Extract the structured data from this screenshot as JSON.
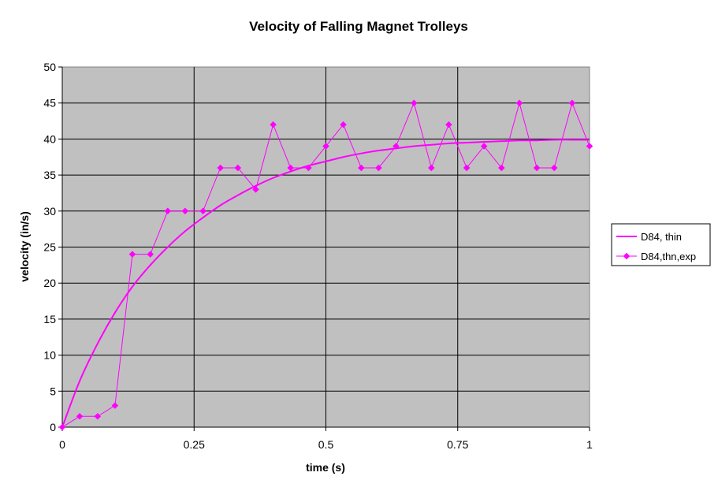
{
  "chart_data": {
    "type": "line",
    "title": "Velocity of Falling Magnet Trolleys",
    "xlabel": "time (s)",
    "ylabel": "velocity (in/s)",
    "xlim": [
      0,
      1
    ],
    "ylim": [
      0,
      50
    ],
    "x_ticks": [
      "0",
      "0.25",
      "0.5",
      "0.75",
      "1"
    ],
    "y_ticks": [
      "0",
      "5",
      "10",
      "15",
      "20",
      "25",
      "30",
      "35",
      "40",
      "45",
      "50"
    ],
    "grid": true,
    "legend_position": "right",
    "plot_background": "#c0c0c0",
    "series": [
      {
        "name": "D84, thin",
        "style": "smooth-line",
        "color": "#ff00ff",
        "x": [
          0,
          0.033,
          0.067,
          0.1,
          0.133,
          0.167,
          0.2,
          0.233,
          0.267,
          0.3,
          0.333,
          0.367,
          0.4,
          0.433,
          0.467,
          0.5,
          0.533,
          0.567,
          0.6,
          0.633,
          0.667,
          0.7,
          0.733,
          0.767,
          0.8,
          0.833,
          0.867,
          0.9,
          0.933,
          0.967,
          1.0
        ],
        "y": [
          0,
          6.4,
          11.6,
          15.9,
          19.5,
          22.5,
          25.0,
          27.2,
          29.1,
          30.8,
          32.2,
          33.5,
          34.6,
          35.5,
          36.3,
          36.9,
          37.5,
          38.0,
          38.4,
          38.7,
          39.0,
          39.2,
          39.4,
          39.5,
          39.6,
          39.7,
          39.8,
          39.8,
          39.9,
          39.9,
          39.9
        ]
      },
      {
        "name": "D84,thn,exp",
        "style": "line-markers",
        "color": "#ff00ff",
        "x": [
          0,
          0.033,
          0.067,
          0.1,
          0.133,
          0.167,
          0.2,
          0.233,
          0.267,
          0.3,
          0.333,
          0.367,
          0.4,
          0.433,
          0.467,
          0.5,
          0.533,
          0.567,
          0.6,
          0.633,
          0.667,
          0.7,
          0.733,
          0.767,
          0.8,
          0.833,
          0.867,
          0.9,
          0.933,
          0.967,
          1.0
        ],
        "y": [
          0,
          1.5,
          1.5,
          3,
          24,
          24,
          30,
          30,
          30,
          36,
          36,
          33,
          42,
          36,
          36,
          39,
          42,
          36,
          36,
          39,
          45,
          36,
          42,
          36,
          39,
          36,
          45,
          36,
          36,
          45,
          39
        ]
      }
    ]
  }
}
